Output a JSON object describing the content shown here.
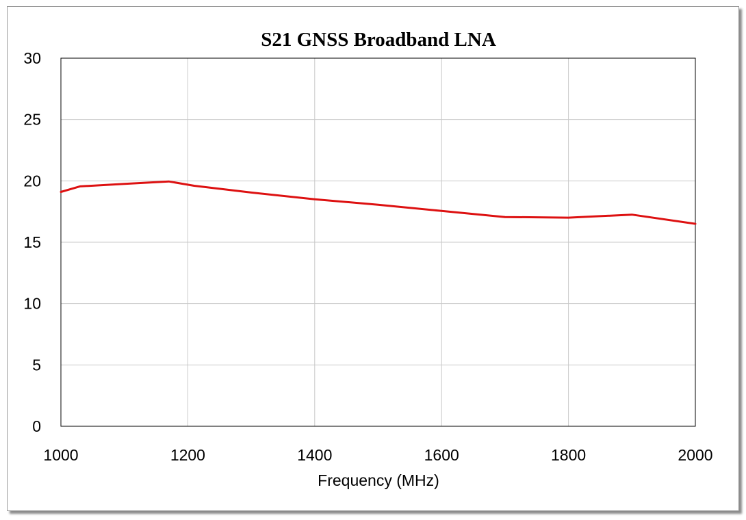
{
  "chart_data": {
    "type": "line",
    "title": "S21 GNSS Broadband LNA",
    "xlabel": "Frequency (MHz)",
    "ylabel": "",
    "xlim": [
      1000,
      2000
    ],
    "ylim": [
      0,
      30
    ],
    "xticks": [
      1000,
      1200,
      1400,
      1600,
      1800,
      2000
    ],
    "yticks": [
      0,
      5,
      10,
      15,
      20,
      25,
      30
    ],
    "grid": true,
    "legend": "none",
    "series": [
      {
        "color": "#dd1111",
        "x": [
          1000,
          1030,
          1100,
          1170,
          1210,
          1300,
          1400,
          1500,
          1600,
          1700,
          1800,
          1900,
          2000
        ],
        "y": [
          19.1,
          19.55,
          19.75,
          19.95,
          19.6,
          19.05,
          18.5,
          18.05,
          17.55,
          17.05,
          17.0,
          17.25,
          16.5
        ]
      }
    ]
  }
}
